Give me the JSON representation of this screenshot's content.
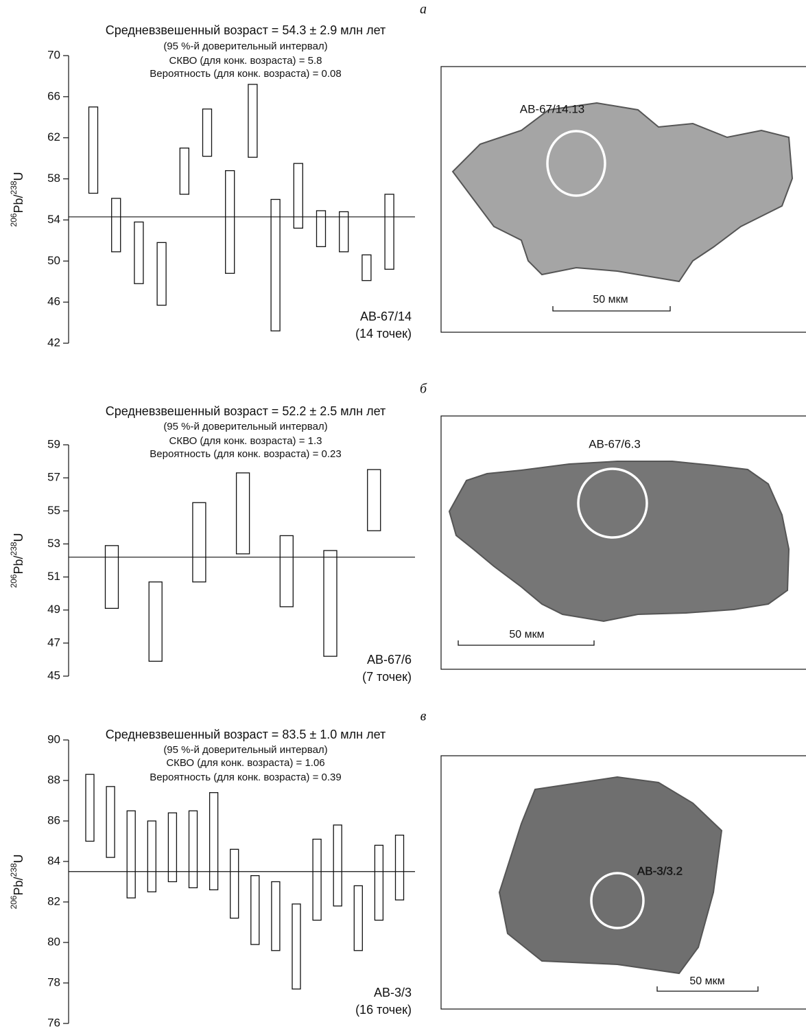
{
  "chart_data": [
    {
      "type": "range",
      "panel": "а",
      "title": "Средневзвешенный возраст = 54.3 ± 2.9 млн лет",
      "notes": [
        "(95 %-й доверительный интервал)",
        "СКВО (для конк. возраста) = 5.8",
        "Вероятность (для конк. возраста) = 0.08"
      ],
      "ylabel_parts": [
        "206",
        "Pb/",
        "238",
        "U"
      ],
      "sample": "АВ-67/14",
      "points_note": "(14 точек)",
      "mean": 54.3,
      "ylim": [
        42,
        70
      ],
      "yticks": [
        42,
        46,
        50,
        54,
        58,
        62,
        66,
        70
      ],
      "values": [
        [
          56.6,
          65.0
        ],
        [
          50.9,
          56.1
        ],
        [
          47.8,
          53.8
        ],
        [
          45.7,
          51.8
        ],
        [
          56.5,
          61.0
        ],
        [
          60.2,
          64.8
        ],
        [
          48.8,
          58.8
        ],
        [
          60.1,
          67.2
        ],
        [
          43.2,
          56.0
        ],
        [
          53.2,
          59.5
        ],
        [
          51.4,
          54.9
        ],
        [
          50.9,
          54.8
        ],
        [
          48.1,
          50.6
        ],
        [
          49.2,
          56.5
        ]
      ],
      "image_label": "АВ-67/14.13",
      "scale_label": "50 мкм"
    },
    {
      "type": "range",
      "panel": "б",
      "title": "Средневзвешенный возраст = 52.2 ± 2.5 млн лет",
      "notes": [
        "(95 %-й доверительный интервал)",
        "СКВО (для конк. возраста) = 1.3",
        "Вероятность (для конк. возраста) = 0.23"
      ],
      "ylabel_parts": [
        "206",
        "Pb/",
        "238",
        "U"
      ],
      "sample": "АВ-67/6",
      "points_note": "(7 точек)",
      "mean": 52.2,
      "ylim": [
        45,
        59
      ],
      "yticks": [
        45,
        47,
        49,
        51,
        53,
        55,
        57,
        59
      ],
      "values": [
        [
          49.1,
          52.9
        ],
        [
          45.9,
          50.7
        ],
        [
          50.7,
          55.5
        ],
        [
          52.4,
          57.3
        ],
        [
          49.2,
          53.5
        ],
        [
          46.2,
          52.6
        ],
        [
          53.8,
          57.5
        ]
      ],
      "image_label": "АВ-67/6.3",
      "scale_label": "50 мкм"
    },
    {
      "type": "range",
      "panel": "в",
      "title": "Средневзвешенный возраст = 83.5 ± 1.0 млн лет",
      "notes": [
        "(95 %-й доверительный интервал)",
        "СКВО (для конк. возраста) = 1.06",
        "Вероятность (для конк. возраста) = 0.39"
      ],
      "ylabel_parts": [
        "206",
        "Pb/",
        "238",
        "U"
      ],
      "sample": "АВ-3/3",
      "points_note": "(16 точек)",
      "mean": 83.5,
      "ylim": [
        76,
        90
      ],
      "yticks": [
        76,
        78,
        80,
        82,
        84,
        86,
        88,
        90
      ],
      "values": [
        [
          85.0,
          88.3
        ],
        [
          84.2,
          87.7
        ],
        [
          82.2,
          86.5
        ],
        [
          82.5,
          86.0
        ],
        [
          83.0,
          86.4
        ],
        [
          82.7,
          86.5
        ],
        [
          82.6,
          87.4
        ],
        [
          81.2,
          84.6
        ],
        [
          79.9,
          83.3
        ],
        [
          79.6,
          83.0
        ],
        [
          77.7,
          81.9
        ],
        [
          81.1,
          85.1
        ],
        [
          81.8,
          85.8
        ],
        [
          79.6,
          82.8
        ],
        [
          81.1,
          84.8
        ],
        [
          82.1,
          85.3
        ]
      ],
      "image_label": "АВ-3/3.2",
      "scale_label": "50 мкм"
    }
  ]
}
